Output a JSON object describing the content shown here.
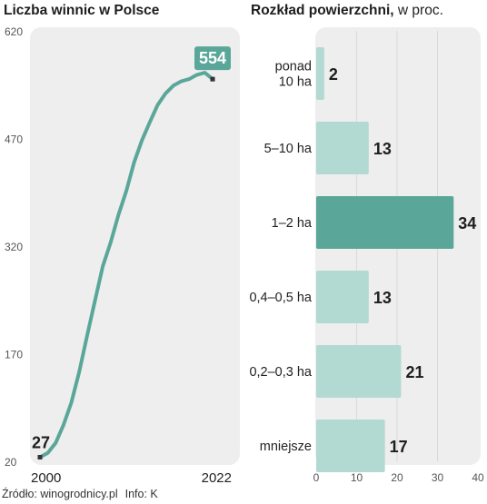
{
  "titles": {
    "left": "Liczba winnic w Polsce",
    "right_bold": "Rozkład powierzchni,",
    "right_normal": " w proc."
  },
  "source": {
    "text": "Źródło: winogrodnicy.pl",
    "info": "Info: K"
  },
  "colors": {
    "line": "#5aa79a",
    "bar_light": "#b3d9d3",
    "bar_highlight": "#5aa79a",
    "panel_bg": "#eeeeee"
  },
  "chart_data": [
    {
      "type": "line",
      "title": "Liczba winnic w Polsce",
      "x_start_label": "2000",
      "x_end_label": "2022",
      "x": [
        2000,
        2001,
        2002,
        2003,
        2004,
        2005,
        2006,
        2007,
        2008,
        2009,
        2010,
        2011,
        2012,
        2013,
        2014,
        2015,
        2016,
        2017,
        2018,
        2019,
        2020,
        2021,
        2022
      ],
      "values": [
        27,
        33,
        47,
        72,
        103,
        146,
        196,
        245,
        293,
        326,
        365,
        398,
        438,
        469,
        494,
        518,
        534,
        545,
        551,
        554,
        560,
        563,
        554
      ],
      "yticks": [
        20,
        170,
        320,
        470,
        620
      ],
      "ylim": [
        20,
        620
      ],
      "annotations": [
        {
          "label": "27",
          "year": 2000,
          "value": 27
        },
        {
          "label": "554",
          "year": 2022,
          "value": 554
        }
      ]
    },
    {
      "type": "bar",
      "orientation": "horizontal",
      "title": "Rozkład powierzchni, w proc.",
      "categories": [
        "ponad 10 ha",
        "5–10 ha",
        "1–2 ha",
        "0,4–0,5 ha",
        "0,2–0,3 ha",
        "mniejsze"
      ],
      "category_lines": [
        [
          "ponad",
          "10 ha"
        ],
        [
          "5–10 ha"
        ],
        [
          "1–2 ha"
        ],
        [
          "0,4–0,5 ha"
        ],
        [
          "0,2–0,3 ha"
        ],
        [
          "mniejsze"
        ]
      ],
      "values": [
        2,
        13,
        34,
        13,
        21,
        17
      ],
      "highlight_index": 2,
      "xticks": [
        0,
        10,
        20,
        30,
        40
      ],
      "xlim": [
        0,
        40
      ]
    }
  ]
}
